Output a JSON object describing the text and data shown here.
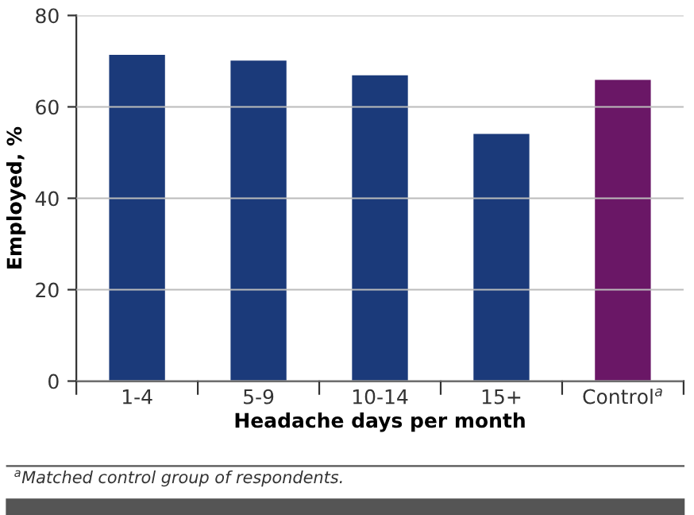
{
  "chart_data": {
    "type": "bar",
    "xlabel": "Headache days per month",
    "ylabel": "Employed, %",
    "categories": [
      "1-4",
      "5-9",
      "10-14",
      "15+",
      "Control$^{a}$"
    ],
    "values": [
      71.4,
      70.1,
      66.9,
      54.1,
      65.9
    ],
    "colors": [
      "#1b3a7a",
      "#1b3a7a",
      "#1b3a7a",
      "#1b3a7a",
      "#6a1766"
    ],
    "ylim": [
      0,
      80
    ],
    "yticks": [
      0,
      20,
      40,
      60,
      80
    ],
    "grid": "y",
    "annotations": [
      "$^{a}$Matched control group of respondents."
    ]
  }
}
